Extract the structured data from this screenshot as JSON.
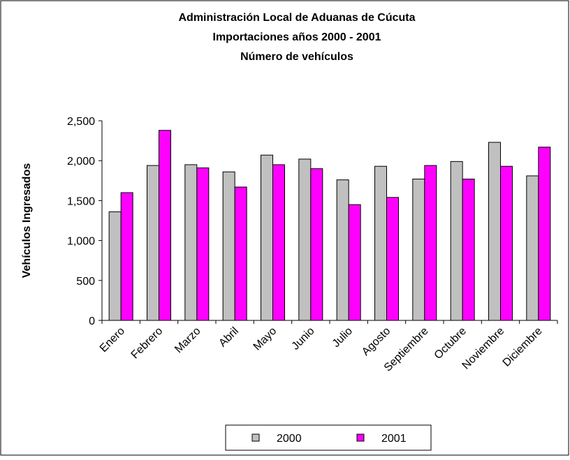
{
  "chart_data": {
    "type": "bar",
    "title": [
      "Administración Local de Aduanas de Cúcuta",
      "Importaciones años 2000 - 2001",
      "Número de vehículos"
    ],
    "y_label": "Vehículos Ingresados",
    "categories": [
      "Enero",
      "Febrero",
      "Marzo",
      "Abril",
      "Mayo",
      "Junio",
      "Julio",
      "Agosto",
      "Septiembre",
      "Octubre",
      "Noviembre",
      "Diciembre"
    ],
    "series": [
      {
        "name": "2000",
        "color": "#c0c0c0",
        "values": [
          1360,
          1940,
          1950,
          1860,
          2070,
          2020,
          1760,
          1930,
          1770,
          1990,
          2230,
          1810
        ]
      },
      {
        "name": "2001",
        "color": "#ff00ff",
        "values": [
          1600,
          2380,
          1910,
          1670,
          1950,
          1900,
          1450,
          1540,
          1940,
          1770,
          1930,
          2170
        ]
      }
    ],
    "ylim": [
      0,
      2500
    ],
    "yticks": [
      0,
      500,
      {
        "value": 1000,
        "label": "1,000"
      },
      {
        "value": 1500,
        "label": "1,500"
      },
      {
        "value": 2000,
        "label": "2,000"
      },
      {
        "value": 2500,
        "label": "2,500"
      }
    ],
    "legend": "bottom"
  }
}
